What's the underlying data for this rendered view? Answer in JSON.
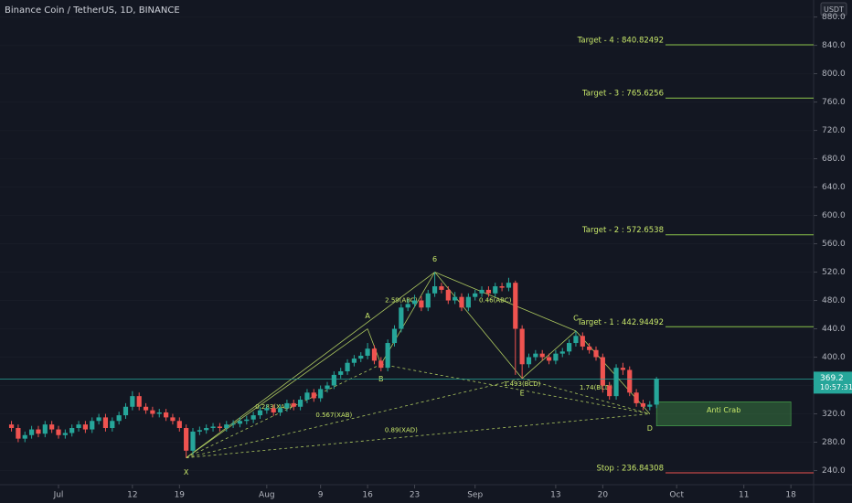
{
  "chart_data": {
    "type": "candlestick",
    "title": "Binance Coin / TetherUS, 1D, BINANCE",
    "currency": "USDT",
    "up_color": "#26a69a",
    "down_color": "#ef5350",
    "x": [
      "Jun 24",
      "Jun 25",
      "Jun 26",
      "Jun 27",
      "Jun 28",
      "Jun 29",
      "Jun 30",
      "Jul 1",
      "Jul 2",
      "Jul 3",
      "Jul 4",
      "Jul 5",
      "Jul 6",
      "Jul 7",
      "Jul 8",
      "Jul 9",
      "Jul 10",
      "Jul 11",
      "Jul 12",
      "Jul 13",
      "Jul 14",
      "Jul 15",
      "Jul 16",
      "Jul 17",
      "Jul 18",
      "Jul 19",
      "Jul 20",
      "Jul 21",
      "Jul 22",
      "Jul 23",
      "Jul 24",
      "Jul 25",
      "Jul 26",
      "Jul 27",
      "Jul 28",
      "Jul 29",
      "Jul 30",
      "Jul 31",
      "Aug 1",
      "Aug 2",
      "Aug 3",
      "Aug 4",
      "Aug 5",
      "Aug 6",
      "Aug 7",
      "Aug 8",
      "Aug 9",
      "Aug 10",
      "Aug 11",
      "Aug 12",
      "Aug 13",
      "Aug 14",
      "Aug 15",
      "Aug 16",
      "Aug 17",
      "Aug 18",
      "Aug 19",
      "Aug 20",
      "Aug 21",
      "Aug 22",
      "Aug 23",
      "Aug 24",
      "Aug 25",
      "Aug 26",
      "Aug 27",
      "Aug 28",
      "Aug 29",
      "Aug 30",
      "Aug 31",
      "Sep 1",
      "Sep 2",
      "Sep 3",
      "Sep 4",
      "Sep 5",
      "Sep 6",
      "Sep 7",
      "Sep 8",
      "Sep 9",
      "Sep 10",
      "Sep 11",
      "Sep 12",
      "Sep 13",
      "Sep 14",
      "Sep 15",
      "Sep 16",
      "Sep 17",
      "Sep 18",
      "Sep 19",
      "Sep 20",
      "Sep 21",
      "Sep 22",
      "Sep 23",
      "Sep 24",
      "Sep 25",
      "Sep 26",
      "Sep 27",
      "Sep 28"
    ],
    "open": [
      305,
      300,
      285,
      290,
      298,
      292,
      305,
      298,
      290,
      293,
      300,
      305,
      298,
      310,
      315,
      300,
      310,
      318,
      330,
      345,
      330,
      325,
      320,
      322,
      315,
      310,
      300,
      268,
      295,
      297,
      300,
      302,
      300,
      305,
      306,
      310,
      312,
      318,
      325,
      328,
      322,
      328,
      335,
      330,
      340,
      350,
      342,
      355,
      360,
      375,
      380,
      392,
      398,
      402,
      412,
      395,
      385,
      420,
      440,
      470,
      475,
      480,
      470,
      490,
      500,
      495,
      480,
      485,
      470,
      485,
      490,
      495,
      490,
      500,
      498,
      505,
      440,
      390,
      400,
      405,
      400,
      395,
      405,
      408,
      420,
      430,
      415,
      410,
      400,
      360,
      345,
      385,
      382,
      350,
      335,
      330,
      333
    ],
    "high": [
      310,
      305,
      295,
      303,
      303,
      310,
      310,
      303,
      298,
      305,
      310,
      310,
      315,
      320,
      320,
      315,
      323,
      335,
      352,
      350,
      335,
      330,
      327,
      327,
      320,
      315,
      305,
      300,
      302,
      305,
      307,
      307,
      310,
      311,
      315,
      317,
      323,
      330,
      333,
      333,
      333,
      340,
      340,
      345,
      355,
      355,
      360,
      365,
      380,
      385,
      397,
      403,
      407,
      420,
      417,
      400,
      425,
      445,
      475,
      482,
      488,
      486,
      495,
      520,
      505,
      500,
      492,
      490,
      490,
      495,
      500,
      500,
      505,
      505,
      512,
      508,
      445,
      405,
      410,
      410,
      405,
      410,
      413,
      425,
      437,
      435,
      420,
      415,
      405,
      365,
      390,
      392,
      387,
      355,
      340,
      338,
      372
    ],
    "low": [
      295,
      280,
      280,
      285,
      287,
      287,
      293,
      285,
      285,
      288,
      295,
      293,
      293,
      305,
      295,
      295,
      305,
      313,
      325,
      325,
      320,
      315,
      315,
      310,
      305,
      295,
      258,
      263,
      290,
      292,
      295,
      295,
      295,
      300,
      301,
      305,
      307,
      313,
      320,
      317,
      317,
      323,
      325,
      325,
      335,
      337,
      337,
      350,
      355,
      370,
      375,
      387,
      393,
      397,
      390,
      380,
      380,
      415,
      435,
      465,
      470,
      465,
      465,
      485,
      490,
      475,
      475,
      465,
      465,
      480,
      485,
      485,
      485,
      493,
      493,
      375,
      370,
      385,
      395,
      395,
      390,
      390,
      400,
      403,
      415,
      410,
      405,
      395,
      350,
      340,
      340,
      375,
      345,
      330,
      325,
      325,
      328
    ],
    "close": [
      300,
      285,
      290,
      298,
      292,
      305,
      298,
      290,
      293,
      300,
      305,
      298,
      310,
      315,
      300,
      310,
      318,
      330,
      345,
      330,
      325,
      320,
      322,
      315,
      310,
      300,
      268,
      295,
      297,
      300,
      302,
      300,
      305,
      306,
      310,
      312,
      318,
      325,
      328,
      322,
      328,
      335,
      330,
      340,
      350,
      342,
      355,
      360,
      375,
      380,
      392,
      398,
      402,
      412,
      395,
      385,
      420,
      440,
      470,
      475,
      480,
      470,
      490,
      500,
      495,
      480,
      485,
      470,
      485,
      490,
      495,
      490,
      500,
      498,
      505,
      440,
      390,
      400,
      405,
      400,
      395,
      405,
      408,
      420,
      430,
      415,
      410,
      400,
      360,
      345,
      385,
      382,
      350,
      335,
      330,
      333,
      369.2
    ],
    "ylim": [
      220,
      904
    ],
    "yticks": [
      {
        "value": 240,
        "label": "240.0"
      },
      {
        "value": 280,
        "label": "280.0"
      },
      {
        "value": 320,
        "label": "320.0"
      },
      {
        "value": 360,
        "label": "360.0"
      },
      {
        "value": 400,
        "label": "400.0"
      },
      {
        "value": 440,
        "label": "440.0"
      },
      {
        "value": 480,
        "label": "480.0"
      },
      {
        "value": 520,
        "label": "520.0"
      },
      {
        "value": 560,
        "label": "560.0"
      },
      {
        "value": 600,
        "label": "600.0"
      },
      {
        "value": 640,
        "label": "640.0"
      },
      {
        "value": 680,
        "label": "680.0"
      },
      {
        "value": 720,
        "label": "720.0"
      },
      {
        "value": 760,
        "label": "760.0"
      },
      {
        "value": 800,
        "label": "800.0"
      },
      {
        "value": 840,
        "label": "840.0"
      },
      {
        "value": 880,
        "label": "880.0"
      }
    ],
    "xticks": [
      {
        "value": "Jul 1",
        "label": "Jul"
      },
      {
        "value": "Jul 12",
        "label": "12"
      },
      {
        "value": "Jul 19",
        "label": "19"
      },
      {
        "value": "Aug 1",
        "label": "Aug"
      },
      {
        "value": "Aug 9",
        "label": "9"
      },
      {
        "value": "Aug 16",
        "label": "16"
      },
      {
        "value": "Aug 23",
        "label": "23"
      },
      {
        "value": "Sep 1",
        "label": "Sep"
      },
      {
        "value": "Sep 13",
        "label": "13"
      },
      {
        "value": "Sep 20",
        "label": "20"
      },
      {
        "value": "Oct 1",
        "label": "Oct"
      },
      {
        "value": "Oct 11",
        "label": "11"
      },
      {
        "value": "Oct 18",
        "label": "18"
      }
    ],
    "last_price": {
      "value": 369.2,
      "label": "369.2",
      "countdown": "10:57:31"
    },
    "levels": [
      {
        "label": "Target - 4 : 840.82492",
        "value": 840.82492,
        "color": "#8bc34a"
      },
      {
        "label": "Target - 3 : 765.6256",
        "value": 765.6256,
        "color": "#8bc34a"
      },
      {
        "label": "Target - 2 : 572.6538",
        "value": 572.6538,
        "color": "#8bc34a"
      },
      {
        "label": "Target - 1 : 442.94492",
        "value": 442.94492,
        "color": "#8bc34a"
      },
      {
        "label": "Stop : 236.84308",
        "value": 236.84308,
        "color": "#ef5350"
      }
    ],
    "zone": {
      "label": "Anti Crab",
      "x": [
        "Sep 28",
        "Oct 18"
      ],
      "price": [
        303,
        337
      ]
    },
    "pattern": [
      {
        "label": "X",
        "x": "Jul 20",
        "price": 258
      },
      {
        "label": "A",
        "x": "Aug 16",
        "price": 440
      },
      {
        "label": "B",
        "x": "Aug 18",
        "price": 390
      },
      {
        "label": "6",
        "x": "Aug 26",
        "price": 520
      },
      {
        "label": "E",
        "x": "Sep 8",
        "price": 370
      },
      {
        "label": "C",
        "x": "Sep 16",
        "price": 437
      },
      {
        "label": "D",
        "x": "Sep 27",
        "price": 320
      }
    ],
    "ratios": [
      {
        "label": "2.59(ABC)",
        "x": "Aug 21",
        "price": 480
      },
      {
        "label": "0.46(ABC)",
        "x": "Sep 4",
        "price": 480
      },
      {
        "label": "0.283(XAB)",
        "x": "Aug 2",
        "price": 330
      },
      {
        "label": "0.567(XAB)",
        "x": "Aug 11",
        "price": 318
      },
      {
        "label": "0.89(XAD)",
        "x": "Aug 21",
        "price": 297
      },
      {
        "label": "1.493(BCD)",
        "x": "Sep 8",
        "price": 362
      },
      {
        "label": "1.74(BCD)",
        "x": "Sep 19",
        "price": 357
      }
    ]
  }
}
